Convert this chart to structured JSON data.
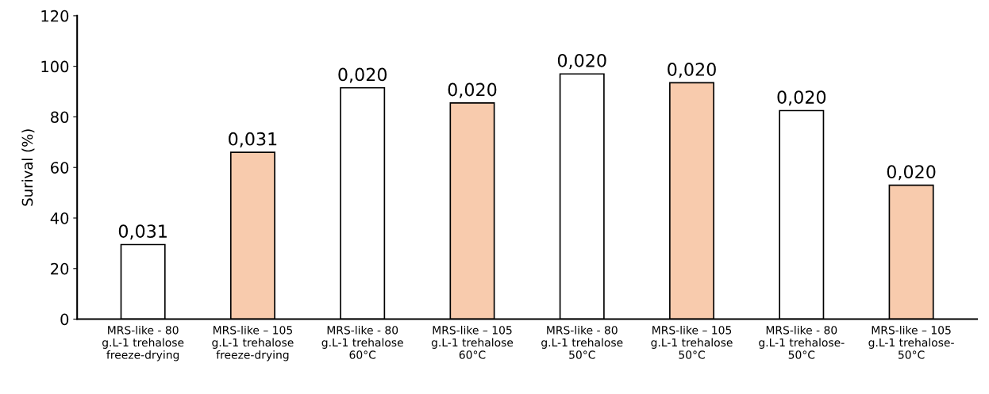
{
  "chart_data": {
    "type": "bar",
    "ylabel": "Surival (%)",
    "categories": [
      "MRS-like - 80\ng.L-1 trehalose\nfreeze-drying",
      "MRS-like – 105\ng.L-1 trehalose\nfreeze-drying",
      "MRS-like - 80\ng.L-1 trehalose\n60°C",
      "MRS-like – 105\ng.L-1 trehalose\n60°C",
      "MRS-like - 80\ng.L-1 trehalose\n50°C",
      "MRS-like – 105\ng.L-1 trehalose\n50°C",
      "MRS-like - 80\ng.L-1 trehalose-\n50°C",
      "MRS-like – 105\ng.L-1 trehalose-\n50°C"
    ],
    "values": [
      29.5,
      66,
      91.5,
      85.5,
      97,
      93.5,
      82.5,
      53
    ],
    "colors": [
      "#ffffff",
      "#f8cbad",
      "#ffffff",
      "#f8cbad",
      "#ffffff",
      "#f8cbad",
      "#ffffff",
      "#f8cbad"
    ],
    "annotations": [
      {
        "text": "0,031",
        "x": "MRS-like - 80\ng.L-1 trehalose\nfreeze-drying",
        "y": 29.5
      },
      {
        "text": "0,031",
        "x": "MRS-like – 105\ng.L-1 trehalose\nfreeze-drying",
        "y": 66
      },
      {
        "text": "0,020",
        "x": "MRS-like - 80\ng.L-1 trehalose\n60°C",
        "y": 91.5
      },
      {
        "text": "0,020",
        "x": "MRS-like – 105\ng.L-1 trehalose\n60°C",
        "y": 85.5
      },
      {
        "text": "0,020",
        "x": "MRS-like - 80\ng.L-1 trehalose\n50°C",
        "y": 97
      },
      {
        "text": "0,020",
        "x": "MRS-like – 105\ng.L-1 trehalose\n50°C",
        "y": 93.5
      },
      {
        "text": "0,020",
        "x": "MRS-like - 80\ng.L-1 trehalose-\n50°C",
        "y": 82.5
      },
      {
        "text": "0,020",
        "x": "MRS-like – 105\ng.L-1 trehalose-\n50°C",
        "y": 53
      }
    ],
    "ylim": [
      0,
      120
    ],
    "yticks": [
      0,
      20,
      40,
      60,
      80,
      100,
      120
    ],
    "grid": false
  }
}
